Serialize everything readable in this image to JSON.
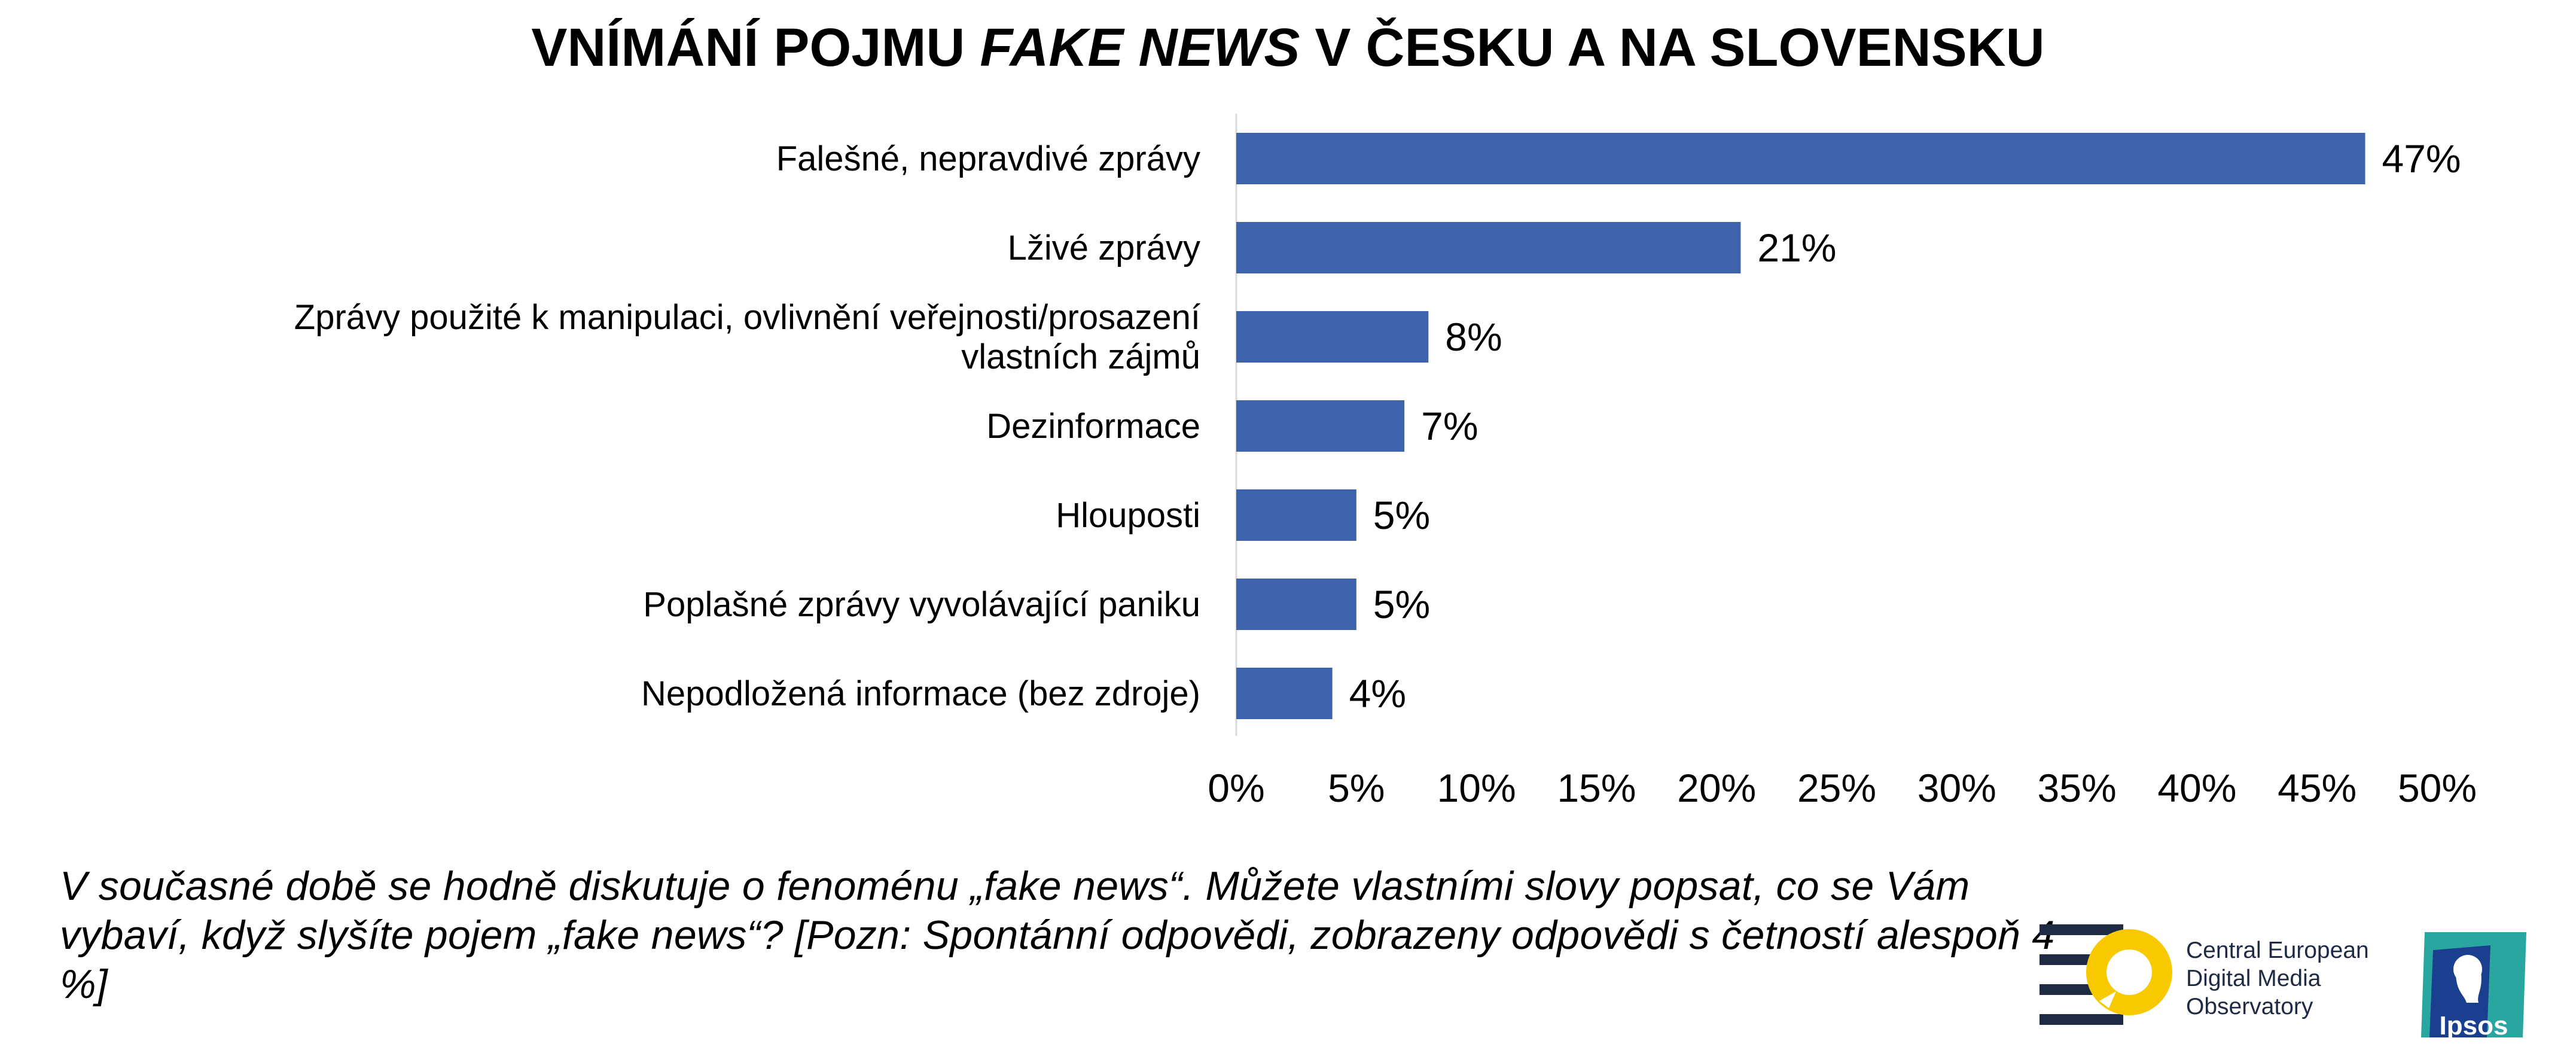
{
  "title": {
    "part1": "VNÍMÁNÍ POJMU ",
    "emphasis": "FAKE NEWS",
    "part2": " V ČESKU A NA SLOVENSKU"
  },
  "chart_data": {
    "type": "bar",
    "orientation": "horizontal",
    "title": "VNÍMÁNÍ POJMU FAKE NEWS V ČESKU A NA SLOVENSKU",
    "categories": [
      [
        "Falešné, nepravdivé zprávy"
      ],
      [
        "Lživé zprávy"
      ],
      [
        "Zprávy použité k manipulaci, ovlivnění veřejnosti/prosazení",
        "vlastních zájmů"
      ],
      [
        "Dezinformace"
      ],
      [
        "Hlouposti"
      ],
      [
        "Poplašné zprávy vyvolávající paniku"
      ],
      [
        "Nepodložená informace (bez zdroje)"
      ]
    ],
    "values": [
      47,
      21,
      8,
      7,
      5,
      5,
      4
    ],
    "value_labels": [
      "47%",
      "21%",
      "8%",
      "7%",
      "5%",
      "5%",
      "4%"
    ],
    "xlim": [
      0,
      50
    ],
    "x_ticks": [
      0,
      5,
      10,
      15,
      20,
      25,
      30,
      35,
      40,
      45,
      50
    ],
    "x_tick_labels": [
      "0%",
      "5%",
      "10%",
      "15%",
      "20%",
      "25%",
      "30%",
      "35%",
      "40%",
      "45%",
      "50%"
    ],
    "bar_color": "#3c63ac",
    "grid": false,
    "legend": "none"
  },
  "question": "V současné době se hodně diskutuje o fenoménu „fake news“. Můžete vlastními slovy popsat, co se Vám vybaví, když slyšíte pojem „fake news“? [Pozn: Spontánní odpovědi, zobrazeny odpovědi s četností alespoň 4 %]",
  "logos": {
    "cedmo": {
      "icon": "cedmo-magnifier-logo",
      "lines": [
        "Central European",
        "Digital Media",
        "Observatory"
      ],
      "yellow": "#f8c900",
      "navy": "#1f2a44"
    },
    "ipsos": {
      "icon": "ipsos-head-logo",
      "text": "Ipsos",
      "color": "#2aa6a0",
      "dark": "#1b3f8f"
    }
  }
}
